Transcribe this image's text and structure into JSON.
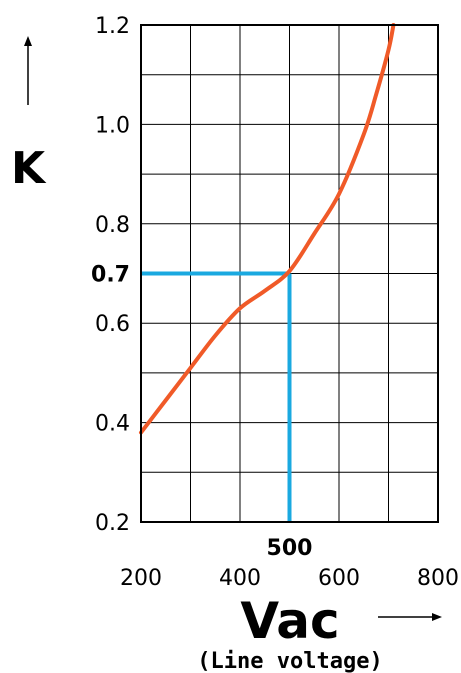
{
  "chart_data": {
    "type": "line",
    "xlabel": "Vac",
    "xlabel_sub": "(Line voltage)",
    "ylabel": "K",
    "xlim": [
      200,
      800
    ],
    "ylim": [
      0.2,
      1.2
    ],
    "x_ticks": [
      "200",
      "400",
      "600",
      "800"
    ],
    "y_ticks": [
      "0.2",
      "0.4",
      "0.6",
      "0.8",
      "1.0",
      "1.2"
    ],
    "grid": true,
    "series": [
      {
        "color": "#f05a28",
        "x": [
          200,
          250,
          300,
          350,
          400,
          450,
          500,
          550,
          600,
          650,
          675,
          700,
          710
        ],
        "y": [
          0.38,
          0.445,
          0.51,
          0.575,
          0.63,
          0.665,
          0.705,
          0.78,
          0.86,
          0.98,
          1.06,
          1.15,
          1.2
        ]
      }
    ],
    "highlight": {
      "x": 500,
      "y": 0.7,
      "x_label": "500",
      "y_label": "0.7",
      "color": "#1aa9e0"
    }
  }
}
